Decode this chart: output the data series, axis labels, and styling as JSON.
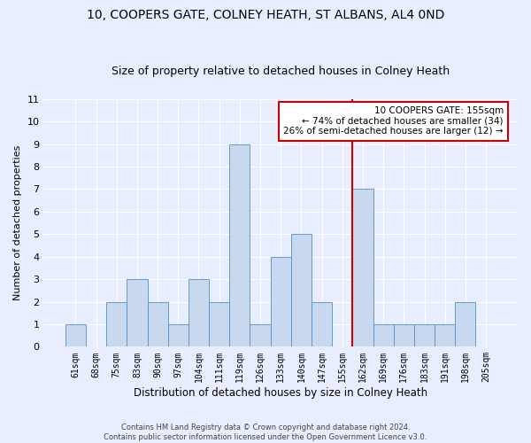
{
  "title1": "10, COOPERS GATE, COLNEY HEATH, ST ALBANS, AL4 0ND",
  "title2": "Size of property relative to detached houses in Colney Heath",
  "xlabel": "Distribution of detached houses by size in Colney Heath",
  "ylabel": "Number of detached properties",
  "footer1": "Contains HM Land Registry data © Crown copyright and database right 2024.",
  "footer2": "Contains public sector information licensed under the Open Government Licence v3.0.",
  "annotation_line1": "10 COOPERS GATE: 155sqm",
  "annotation_line2": "← 74% of detached houses are smaller (34)",
  "annotation_line3": "26% of semi-detached houses are larger (12) →",
  "categories": [
    "61sqm",
    "68sqm",
    "75sqm",
    "83sqm",
    "90sqm",
    "97sqm",
    "104sqm",
    "111sqm",
    "119sqm",
    "126sqm",
    "133sqm",
    "140sqm",
    "147sqm",
    "155sqm",
    "162sqm",
    "169sqm",
    "176sqm",
    "183sqm",
    "191sqm",
    "198sqm",
    "205sqm"
  ],
  "values": [
    1,
    0,
    2,
    3,
    2,
    1,
    3,
    2,
    9,
    1,
    4,
    5,
    2,
    0,
    7,
    1,
    1,
    1,
    1,
    2,
    0
  ],
  "bar_color": "#c8d8ee",
  "bar_edge_color": "#5590c8",
  "vline_color": "#cc0000",
  "ylim": [
    0,
    11
  ],
  "yticks": [
    0,
    1,
    2,
    3,
    4,
    5,
    6,
    7,
    8,
    9,
    10,
    11
  ],
  "bg_color": "#e8eeff",
  "annotation_box_color": "#cc0000",
  "title1_fontsize": 10,
  "title2_fontsize": 9,
  "xlabel_fontsize": 8.5,
  "ylabel_fontsize": 8.0,
  "bar_width": 1.0
}
